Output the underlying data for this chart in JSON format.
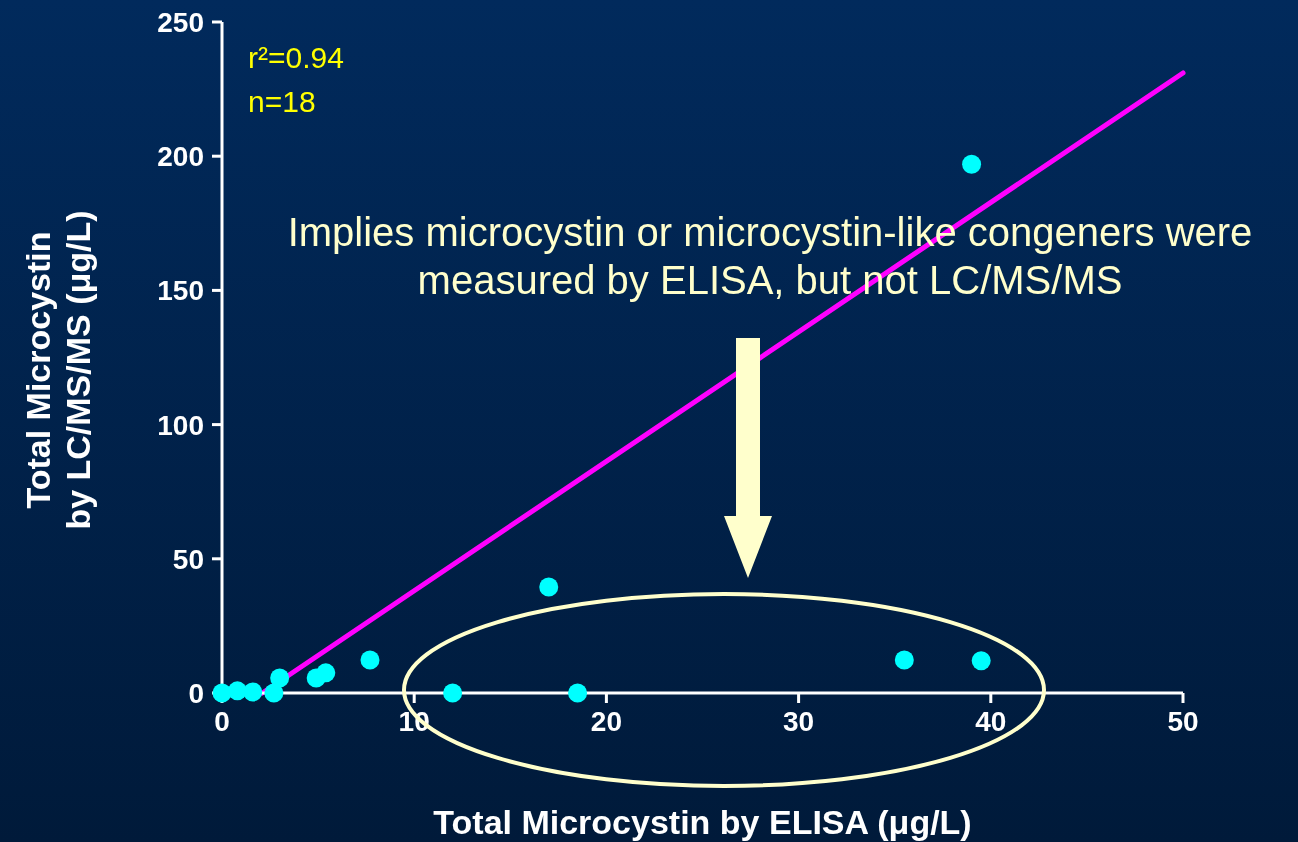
{
  "chart_data": {
    "type": "scatter",
    "xlabel": "Total Microcystin by ELISA (μg/L)",
    "ylabel": "Total Microcystin\nby LC/MS/MS (μg/L)",
    "annotations": [
      "r²=0.94",
      "n=18",
      "Implies microcystin or microcystin-like congeners were measured by ELISA, but not LC/MS/MS"
    ],
    "xlim": [
      0,
      50
    ],
    "xticks": [
      0,
      10,
      20,
      30,
      40,
      50
    ],
    "ylim": [
      0,
      250
    ],
    "yticks": [
      0,
      50,
      100,
      150,
      200,
      250
    ],
    "grid": false,
    "legend": false,
    "marker": "circle",
    "series": [
      {
        "type": "scatter",
        "color": "#00ffff",
        "x": [
          0,
          0.8,
          1.6,
          2.7,
          3.0,
          4.9,
          5.4,
          7.7,
          12,
          17,
          18.5,
          35.5,
          39.5,
          39
        ],
        "values": [
          0,
          0.8,
          0.4,
          0,
          5.6,
          5.6,
          7.5,
          12.3,
          0,
          39.5,
          0,
          12.3,
          12,
          197
        ]
      },
      {
        "type": "line",
        "color": "#ff00ff",
        "x": [
          2.1,
          50
        ],
        "values": [
          0,
          231
        ],
        "line_style": "solid",
        "marker": "none"
      }
    ]
  }
}
